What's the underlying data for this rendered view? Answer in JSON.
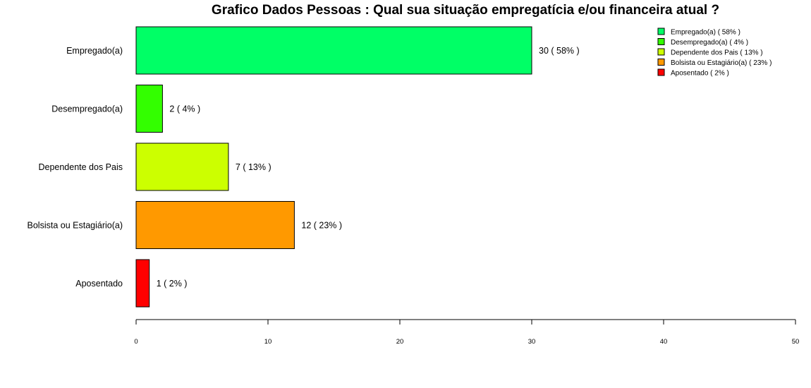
{
  "chart_data": {
    "type": "bar",
    "orientation": "horizontal",
    "title": "Grafico Dados Pessoas : Qual sua situação empregatícia e/ou financeira atual ?",
    "xlabel": "",
    "ylabel": "",
    "xlim": [
      0,
      50
    ],
    "x_ticks": [
      "0",
      "10",
      "20",
      "30",
      "40",
      "50"
    ],
    "x_tick_values": [
      0,
      10,
      20,
      30,
      40,
      50
    ],
    "grid": false,
    "legend_position": "top-right",
    "categories": [
      "Empregado(a)",
      "Desempregado(a)",
      "Dependente dos Pais",
      "Bolsista ou Estagiário(a)",
      "Aposentado"
    ],
    "values": [
      30,
      2,
      7,
      12,
      1
    ],
    "data_labels": [
      "30  ( 58% )",
      "2  ( 4% )",
      "7  ( 13% )",
      "12  ( 23% )",
      "1  ( 2% )"
    ],
    "colors": [
      "#00ff66",
      "#33ff00",
      "#ccff00",
      "#ff9900",
      "#ff0000"
    ],
    "legend": [
      "Empregado(a)  ( 58% )",
      "Desempregado(a)  ( 4% )",
      "Dependente dos Pais  ( 13% )",
      "Bolsista ou Estagiário(a)  ( 23% )",
      "Aposentado  ( 2% )"
    ]
  }
}
